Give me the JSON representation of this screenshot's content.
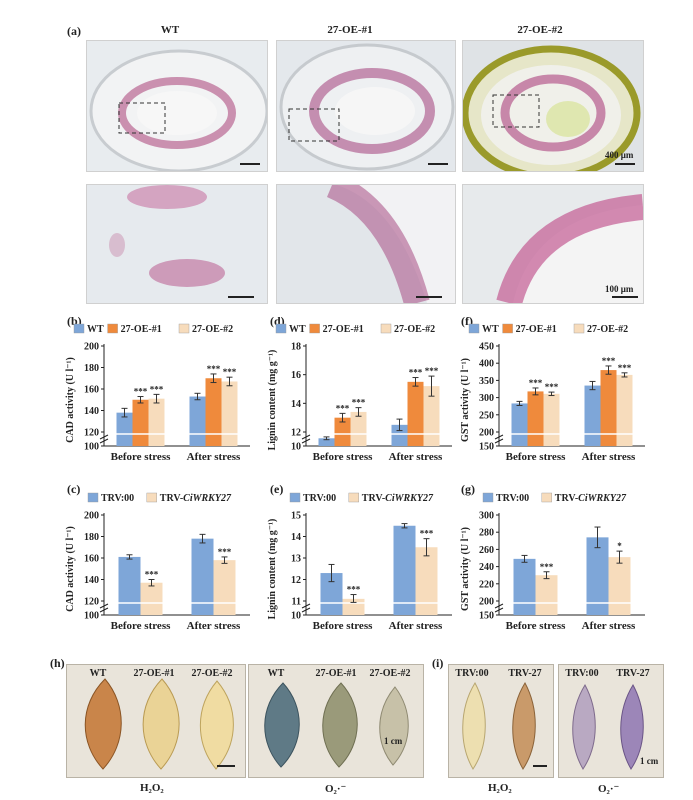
{
  "panel_labels": {
    "a": "(a)",
    "b": "(b)",
    "c": "(c)",
    "d": "(d)",
    "e": "(e)",
    "f": "(f)",
    "g": "(g)",
    "h": "(h)",
    "i": "(i)"
  },
  "micrographs": {
    "column_titles": [
      "WT",
      "27-OE-#1",
      "27-OE-#2"
    ],
    "scale_top": "400 μm",
    "scale_bottom": "100 μm"
  },
  "leaves": {
    "h_left_labels": [
      "WT",
      "27-OE-#1",
      "27-OE-#2"
    ],
    "h_right_labels": [
      "WT",
      "27-OE-#1",
      "27-OE-#2"
    ],
    "i_left_labels": [
      "TRV:00",
      "TRV-27"
    ],
    "i_right_labels": [
      "TRV:00",
      "TRV-27"
    ],
    "scale": "1 cm",
    "h2o2": "H₂O₂",
    "o2": "O₂·⁻"
  },
  "colors": {
    "wt": "#7ea6d8",
    "oe1": "#ef8a3c",
    "oe2": "#f7dcbc",
    "trv00": "#7ea6d8",
    "trv27": "#f7dcbc"
  },
  "chart_data": [
    {
      "id": "b",
      "type": "bar",
      "ylabel": "CAD activity (U l⁻¹)",
      "ylim": [
        100,
        200
      ],
      "yticks": [
        100,
        120,
        140,
        160,
        180,
        200
      ],
      "categories": [
        "Before stress",
        "After stress"
      ],
      "series": [
        {
          "name": "WT",
          "values": [
            138,
            153
          ],
          "errors": [
            4,
            3
          ]
        },
        {
          "name": "27-OE-#1",
          "values": [
            150,
            170
          ],
          "errors": [
            3,
            4
          ]
        },
        {
          "name": "27-OE-#2",
          "values": [
            151,
            167
          ],
          "errors": [
            4,
            4
          ]
        }
      ],
      "annotations": [
        [
          "",
          "***",
          "***"
        ],
        [
          "",
          "***",
          "***"
        ]
      ]
    },
    {
      "id": "d",
      "type": "bar",
      "ylabel": "Lignin content (mg g⁻¹)",
      "ylim": [
        10,
        18
      ],
      "yticks": [
        10,
        12,
        14,
        16,
        18
      ],
      "categories": [
        "Before stress",
        "After stress"
      ],
      "series": [
        {
          "name": "WT",
          "values": [
            11.1,
            12.5
          ],
          "errors": [
            0.2,
            0.4
          ]
        },
        {
          "name": "27-OE-#1",
          "values": [
            13.0,
            15.5
          ],
          "errors": [
            0.3,
            0.3
          ]
        },
        {
          "name": "27-OE-#2",
          "values": [
            13.4,
            15.2
          ],
          "errors": [
            0.3,
            0.7
          ]
        }
      ],
      "annotations": [
        [
          "",
          "***",
          "***"
        ],
        [
          "",
          "***",
          "***"
        ]
      ]
    },
    {
      "id": "f",
      "type": "bar",
      "ylabel": "GST activity (U l⁻¹)",
      "ylim": [
        150,
        450
      ],
      "yticks": [
        150,
        200,
        250,
        300,
        350,
        400,
        450
      ],
      "categories": [
        "Before stress",
        "After stress"
      ],
      "series": [
        {
          "name": "WT",
          "values": [
            283,
            335
          ],
          "errors": [
            6,
            12
          ]
        },
        {
          "name": "27-OE-#1",
          "values": [
            318,
            380
          ],
          "errors": [
            10,
            12
          ]
        },
        {
          "name": "27-OE-#2",
          "values": [
            311,
            366
          ],
          "errors": [
            5,
            6
          ]
        }
      ],
      "annotations": [
        [
          "",
          "***",
          "***"
        ],
        [
          "",
          "***",
          "***"
        ]
      ]
    },
    {
      "id": "c",
      "type": "bar",
      "ylabel": "CAD activity (U l⁻¹)",
      "ylim": [
        100,
        200
      ],
      "yticks": [
        100,
        120,
        140,
        160,
        180,
        200
      ],
      "categories": [
        "Before stress",
        "After stress"
      ],
      "series": [
        {
          "name": "TRV:00",
          "values": [
            161,
            178
          ],
          "errors": [
            2,
            4
          ]
        },
        {
          "name": "TRV-CiWRKY27",
          "values": [
            137,
            158
          ],
          "errors": [
            3,
            3
          ]
        }
      ],
      "annotations": [
        [
          "",
          "***"
        ],
        [
          "",
          "***"
        ]
      ]
    },
    {
      "id": "e",
      "type": "bar",
      "ylabel": "Lignin content (mg g⁻¹)",
      "ylim": [
        10,
        15
      ],
      "yticks": [
        10,
        11,
        12,
        13,
        14,
        15
      ],
      "categories": [
        "Before stress",
        "After stress"
      ],
      "series": [
        {
          "name": "TRV:00",
          "values": [
            12.3,
            14.5
          ],
          "errors": [
            0.4,
            0.1
          ]
        },
        {
          "name": "TRV-CiWRKY27",
          "values": [
            11.1,
            13.5
          ],
          "errors": [
            0.2,
            0.4
          ]
        }
      ],
      "annotations": [
        [
          "",
          "***"
        ],
        [
          "",
          "***"
        ]
      ]
    },
    {
      "id": "g",
      "type": "bar",
      "ylabel": "GST activity (U l⁻¹)",
      "ylim": [
        150,
        300
      ],
      "yticks": [
        150,
        200,
        220,
        240,
        260,
        280,
        300
      ],
      "categories": [
        "Before stress",
        "After stress"
      ],
      "series": [
        {
          "name": "TRV:00",
          "values": [
            249,
            274
          ],
          "errors": [
            4,
            12
          ]
        },
        {
          "name": "TRV-CiWRKY27",
          "values": [
            230,
            251
          ],
          "errors": [
            4,
            7
          ]
        }
      ],
      "annotations": [
        [
          "",
          "***"
        ],
        [
          "",
          "*"
        ]
      ]
    }
  ]
}
